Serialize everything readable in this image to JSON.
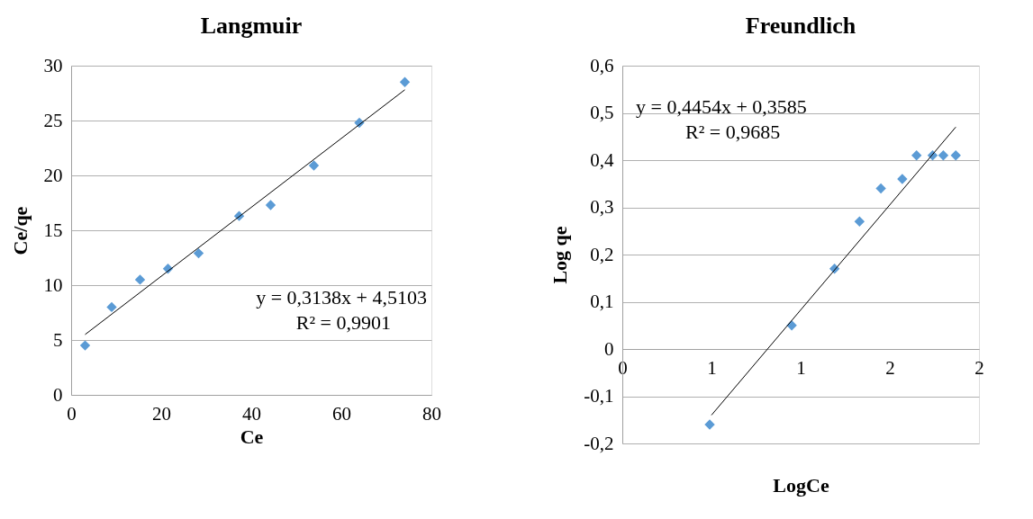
{
  "chart_data": [
    {
      "type": "scatter",
      "title": "Langmuir",
      "xlabel": "Ce",
      "ylabel": "Ce/qe",
      "xlim": [
        0,
        80
      ],
      "xticks": [
        0,
        20,
        40,
        60,
        80
      ],
      "ylim": [
        0,
        30
      ],
      "yticks": [
        0,
        5,
        10,
        15,
        20,
        25,
        30
      ],
      "grid": "y",
      "marker": "diamond",
      "series": [
        {
          "color": "#5b9bd5",
          "x": [
            3.1,
            9.0,
            15.3,
            21.5,
            28.3,
            37.3,
            44.3,
            53.9,
            64.0,
            74.1
          ],
          "values": [
            4.5,
            8.0,
            10.5,
            11.5,
            12.9,
            16.3,
            17.3,
            20.9,
            24.8,
            28.5
          ]
        },
        {
          "type": "line",
          "color": "#000000",
          "marker": "none",
          "x": [
            3.1,
            74.1
          ],
          "values": [
            5.5,
            27.8
          ]
        }
      ],
      "annotations": [
        "y = 0,3138x  + 4,5103",
        "R² = 0,9901"
      ]
    },
    {
      "type": "scatter",
      "title": "Freundlich",
      "xlabel": "LogCe",
      "ylabel": "Log qe",
      "xlim": [
        0,
        2
      ],
      "xticks": [
        0,
        {
          "value": 0.5,
          "label": "1"
        },
        {
          "value": 1,
          "label": "1"
        },
        {
          "value": 1.5,
          "label": "2"
        },
        {
          "value": 2,
          "label": "2"
        }
      ],
      "ylim": [
        -0.2,
        0.6
      ],
      "yticks": [
        {
          "value": -0.2,
          "label": "-0,2"
        },
        {
          "value": -0.1,
          "label": "-0,1"
        },
        0,
        {
          "value": 0.1,
          "label": "0,1"
        },
        {
          "value": 0.2,
          "label": "0,2"
        },
        {
          "value": 0.3,
          "label": "0,3"
        },
        {
          "value": 0.4,
          "label": "0,4"
        },
        {
          "value": 0.5,
          "label": "0,5"
        },
        {
          "value": 0.6,
          "label": "0,6"
        }
      ],
      "grid": "y",
      "marker": "diamond",
      "series": [
        {
          "color": "#5b9bd5",
          "x": [
            0.49,
            0.95,
            1.19,
            1.33,
            1.45,
            1.57,
            1.65,
            1.74,
            1.8,
            1.87
          ],
          "values": [
            -0.16,
            0.05,
            0.17,
            0.27,
            0.34,
            0.36,
            0.41,
            0.41,
            0.41,
            0.41
          ]
        },
        {
          "type": "line",
          "color": "#000000",
          "marker": "none",
          "x": [
            0.5,
            1.87
          ],
          "values": [
            -0.14,
            0.47
          ]
        }
      ],
      "annotations": [
        "y = 0,4454x  + 0,3585",
        "R² = 0,9685"
      ]
    }
  ]
}
